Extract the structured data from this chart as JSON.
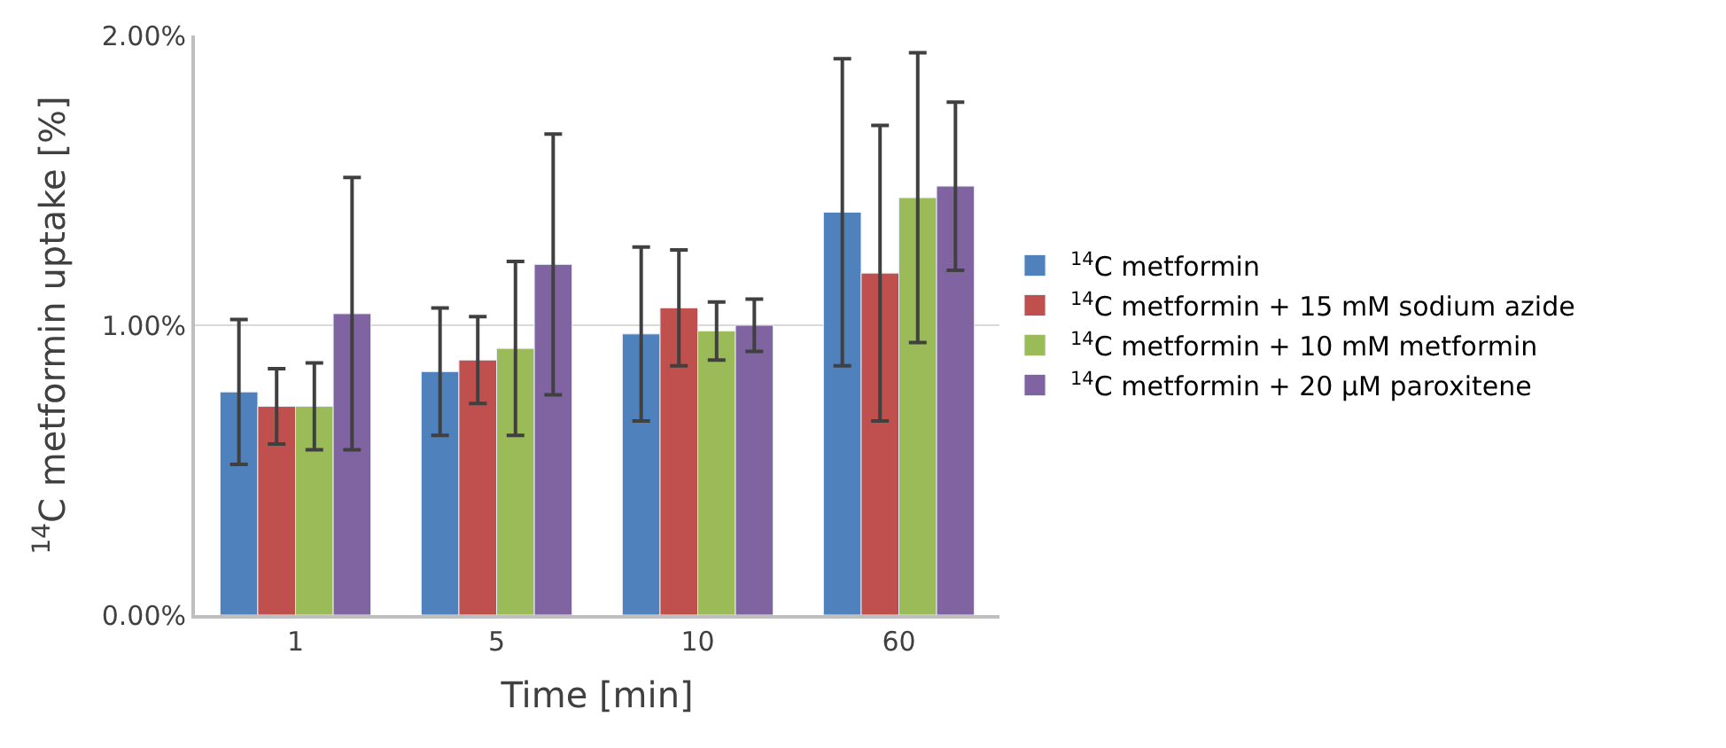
{
  "chart_data": {
    "type": "bar",
    "xlabel": "Time [min]",
    "ylabel": "$^{14}$C metformin uptake [%]",
    "categories": [
      "1",
      "5",
      "10",
      "60"
    ],
    "series": [
      {
        "name": "$^{14}$C metformin",
        "color": "#4f81bd",
        "values": [
          0.77,
          0.84,
          0.97,
          1.39
        ],
        "errors": [
          0.25,
          0.22,
          0.3,
          0.53
        ]
      },
      {
        "name": "$^{14}$C metformin + 15 mM sodium azide",
        "color": "#c0504d",
        "values": [
          0.72,
          0.88,
          1.06,
          1.18
        ],
        "errors": [
          0.13,
          0.15,
          0.2,
          0.51
        ]
      },
      {
        "name": "$^{14}$C metformin + 10 mM metformin",
        "color": "#9bbb59",
        "values": [
          0.72,
          0.92,
          0.98,
          1.44
        ],
        "errors": [
          0.15,
          0.3,
          0.1,
          0.5
        ]
      },
      {
        "name": "$^{14}$C metformin + 20 µM paroxitene",
        "color": "#8064a2",
        "values": [
          1.04,
          1.21,
          1.0,
          1.48
        ],
        "errors": [
          0.47,
          0.45,
          0.09,
          0.29
        ]
      }
    ],
    "ylim": [
      0,
      2
    ],
    "yticks": [
      {
        "value": 0,
        "label": "0.00%"
      },
      {
        "value": 1,
        "label": "1.00%"
      },
      {
        "value": 2,
        "label": "2.00%"
      }
    ],
    "grid": "y",
    "legend": "right"
  }
}
